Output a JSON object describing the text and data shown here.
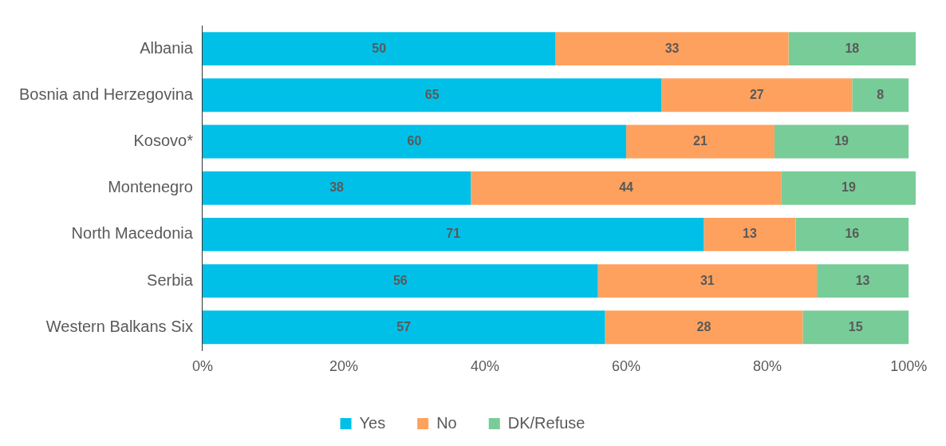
{
  "chart_data": {
    "type": "bar",
    "orientation": "horizontal",
    "stacked": true,
    "categories": [
      "Albania",
      "Bosnia and Herzegovina",
      "Kosovo*",
      "Montenegro",
      "North Macedonia",
      "Serbia",
      "Western Balkans Six"
    ],
    "series": [
      {
        "name": "Yes",
        "color": "#00c0e8",
        "values": [
          50,
          65,
          60,
          38,
          71,
          56,
          57
        ]
      },
      {
        "name": "No",
        "color": "#ffa15e",
        "values": [
          33,
          27,
          21,
          44,
          13,
          31,
          28
        ]
      },
      {
        "name": "DK/Refuse",
        "color": "#78cc98",
        "values": [
          18,
          8,
          19,
          19,
          16,
          13,
          15
        ]
      }
    ],
    "xlim": [
      0,
      101
    ],
    "xticks": [
      {
        "value": 0,
        "label": "0%"
      },
      {
        "value": 20,
        "label": "20%"
      },
      {
        "value": 40,
        "label": "40%"
      },
      {
        "value": 60,
        "label": "60%"
      },
      {
        "value": 80,
        "label": "80%"
      },
      {
        "value": 100,
        "label": "100%"
      }
    ],
    "data_labels": true,
    "grid": false,
    "legend": "bottom"
  }
}
